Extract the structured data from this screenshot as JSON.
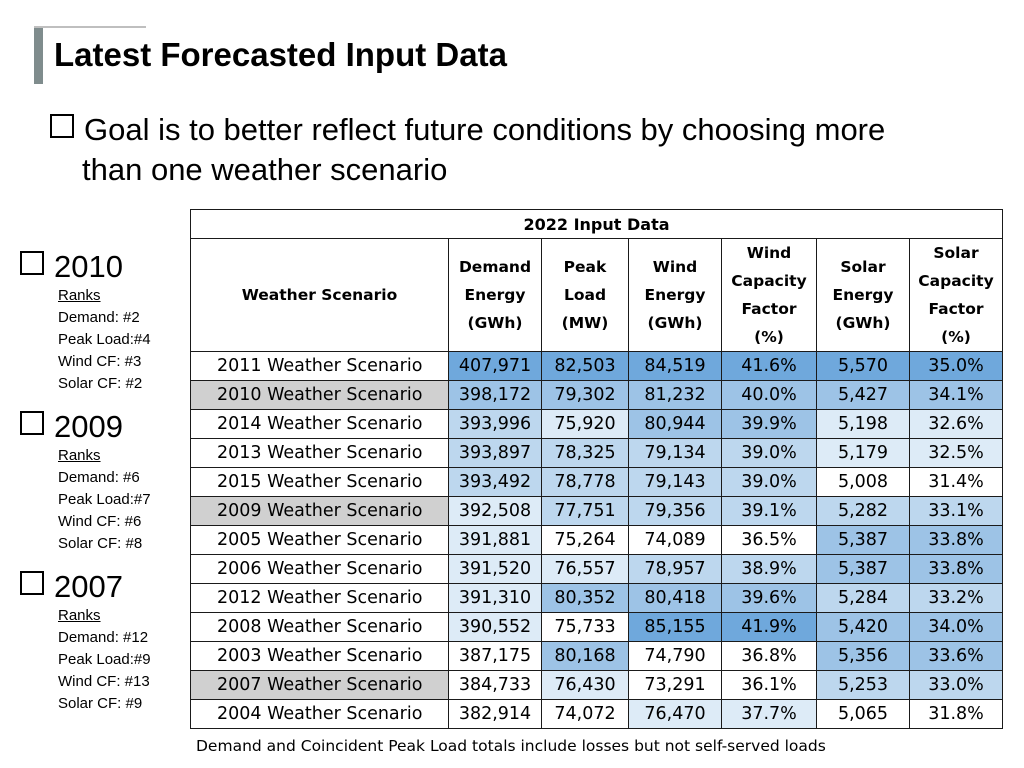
{
  "title": "Latest Forecasted Input Data",
  "goal": {
    "line1": "Goal is to better reflect future conditions by choosing more",
    "line2": "than one weather scenario"
  },
  "years": [
    {
      "year": "2010",
      "ranks_label": "Ranks",
      "demand": "Demand:   #2",
      "peak": "Peak Load:#4",
      "wind": "Wind CF:   #3",
      "solar": "Solar CF:   #2"
    },
    {
      "year": "2009",
      "ranks_label": "Ranks",
      "demand": "Demand:   #6",
      "peak": "Peak Load:#7",
      "wind": "Wind CF:   #6",
      "solar": "Solar CF:   #8"
    },
    {
      "year": "2007",
      "ranks_label": "Ranks",
      "demand": "Demand:   #12",
      "peak": "Peak Load:#9",
      "wind": "Wind CF:   #13",
      "solar": "Solar CF:   #9"
    }
  ],
  "table": {
    "caption": "2022 Input Data",
    "headers": {
      "scenario": "Weather Scenario",
      "demand": [
        "Demand",
        "Energy",
        "(GWh)"
      ],
      "peak": [
        "Peak",
        "Load",
        "(MW)"
      ],
      "wind": [
        "Wind",
        "Energy",
        "(GWh)"
      ],
      "windcf": [
        "Wind",
        "Capacity",
        "Factor",
        "(%)"
      ],
      "solar": [
        "Solar",
        "Energy",
        "(GWh)"
      ],
      "solarcf": [
        "Solar",
        "Capacity",
        "Factor",
        "(%)"
      ]
    },
    "rows": [
      {
        "scenario": "2011 Weather Scenario",
        "demand": "407,971",
        "peak": "82,503",
        "wind": "84,519",
        "windcf": "41.6%",
        "solar": "5,570",
        "solarcf": "35.0%",
        "highlight": false
      },
      {
        "scenario": "2010 Weather Scenario",
        "demand": "398,172",
        "peak": "79,302",
        "wind": "81,232",
        "windcf": "40.0%",
        "solar": "5,427",
        "solarcf": "34.1%",
        "highlight": true
      },
      {
        "scenario": "2014 Weather Scenario",
        "demand": "393,996",
        "peak": "75,920",
        "wind": "80,944",
        "windcf": "39.9%",
        "solar": "5,198",
        "solarcf": "32.6%",
        "highlight": false
      },
      {
        "scenario": "2013 Weather Scenario",
        "demand": "393,897",
        "peak": "78,325",
        "wind": "79,134",
        "windcf": "39.0%",
        "solar": "5,179",
        "solarcf": "32.5%",
        "highlight": false
      },
      {
        "scenario": "2015 Weather Scenario",
        "demand": "393,492",
        "peak": "78,778",
        "wind": "79,143",
        "windcf": "39.0%",
        "solar": "5,008",
        "solarcf": "31.4%",
        "highlight": false
      },
      {
        "scenario": "2009 Weather Scenario",
        "demand": "392,508",
        "peak": "77,751",
        "wind": "79,356",
        "windcf": "39.1%",
        "solar": "5,282",
        "solarcf": "33.1%",
        "highlight": true
      },
      {
        "scenario": "2005 Weather Scenario",
        "demand": "391,881",
        "peak": "75,264",
        "wind": "74,089",
        "windcf": "36.5%",
        "solar": "5,387",
        "solarcf": "33.8%",
        "highlight": false
      },
      {
        "scenario": "2006 Weather Scenario",
        "demand": "391,520",
        "peak": "76,557",
        "wind": "78,957",
        "windcf": "38.9%",
        "solar": "5,387",
        "solarcf": "33.8%",
        "highlight": false
      },
      {
        "scenario": "2012 Weather Scenario",
        "demand": "391,310",
        "peak": "80,352",
        "wind": "80,418",
        "windcf": "39.6%",
        "solar": "5,284",
        "solarcf": "33.2%",
        "highlight": false
      },
      {
        "scenario": "2008 Weather Scenario",
        "demand": "390,552",
        "peak": "75,733",
        "wind": "85,155",
        "windcf": "41.9%",
        "solar": "5,420",
        "solarcf": "34.0%",
        "highlight": false
      },
      {
        "scenario": "2003 Weather Scenario",
        "demand": "387,175",
        "peak": "80,168",
        "wind": "74,790",
        "windcf": "36.8%",
        "solar": "5,356",
        "solarcf": "33.6%",
        "highlight": false
      },
      {
        "scenario": "2007 Weather Scenario",
        "demand": "384,733",
        "peak": "76,430",
        "wind": "73,291",
        "windcf": "36.1%",
        "solar": "5,253",
        "solarcf": "33.0%",
        "highlight": true
      },
      {
        "scenario": "2004 Weather Scenario",
        "demand": "382,914",
        "peak": "74,072",
        "wind": "76,470",
        "windcf": "37.7%",
        "solar": "5,065",
        "solarcf": "31.8%",
        "highlight": false
      }
    ]
  },
  "footnote": "Demand and Coincident Peak Load totals include losses but not self-served loads"
}
